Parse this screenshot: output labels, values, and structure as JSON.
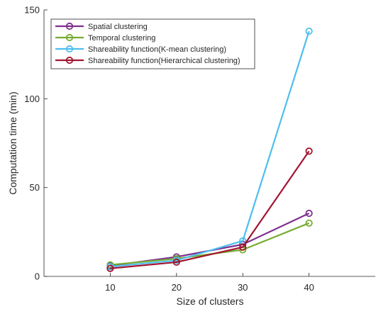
{
  "chart_data": {
    "type": "line",
    "title": "",
    "xlabel": "Size of clusters",
    "ylabel": "Computation time (min)",
    "x": [
      10,
      20,
      30,
      40
    ],
    "xlim": [
      0,
      50
    ],
    "ylim": [
      0,
      150
    ],
    "xticks": [
      10,
      20,
      30,
      40
    ],
    "yticks": [
      0,
      50,
      100,
      150
    ],
    "grid": false,
    "legend_position": "top-left",
    "marker": "circle",
    "series": [
      {
        "name": "Spatial clustering",
        "color": "#7E2F8E",
        "values": [
          6.0,
          11.0,
          18.0,
          35.5
        ]
      },
      {
        "name": "Temporal clustering",
        "color": "#77AC30",
        "values": [
          6.5,
          10.0,
          15.0,
          30.0
        ]
      },
      {
        "name": "Shareability function(K-mean clustering)",
        "color": "#4DBEEE",
        "values": [
          5.5,
          9.0,
          20.0,
          138.0
        ]
      },
      {
        "name": "Shareability function(Hierarchical clustering)",
        "color": "#A2142F",
        "values": [
          4.5,
          8.0,
          16.5,
          70.5
        ]
      }
    ]
  }
}
